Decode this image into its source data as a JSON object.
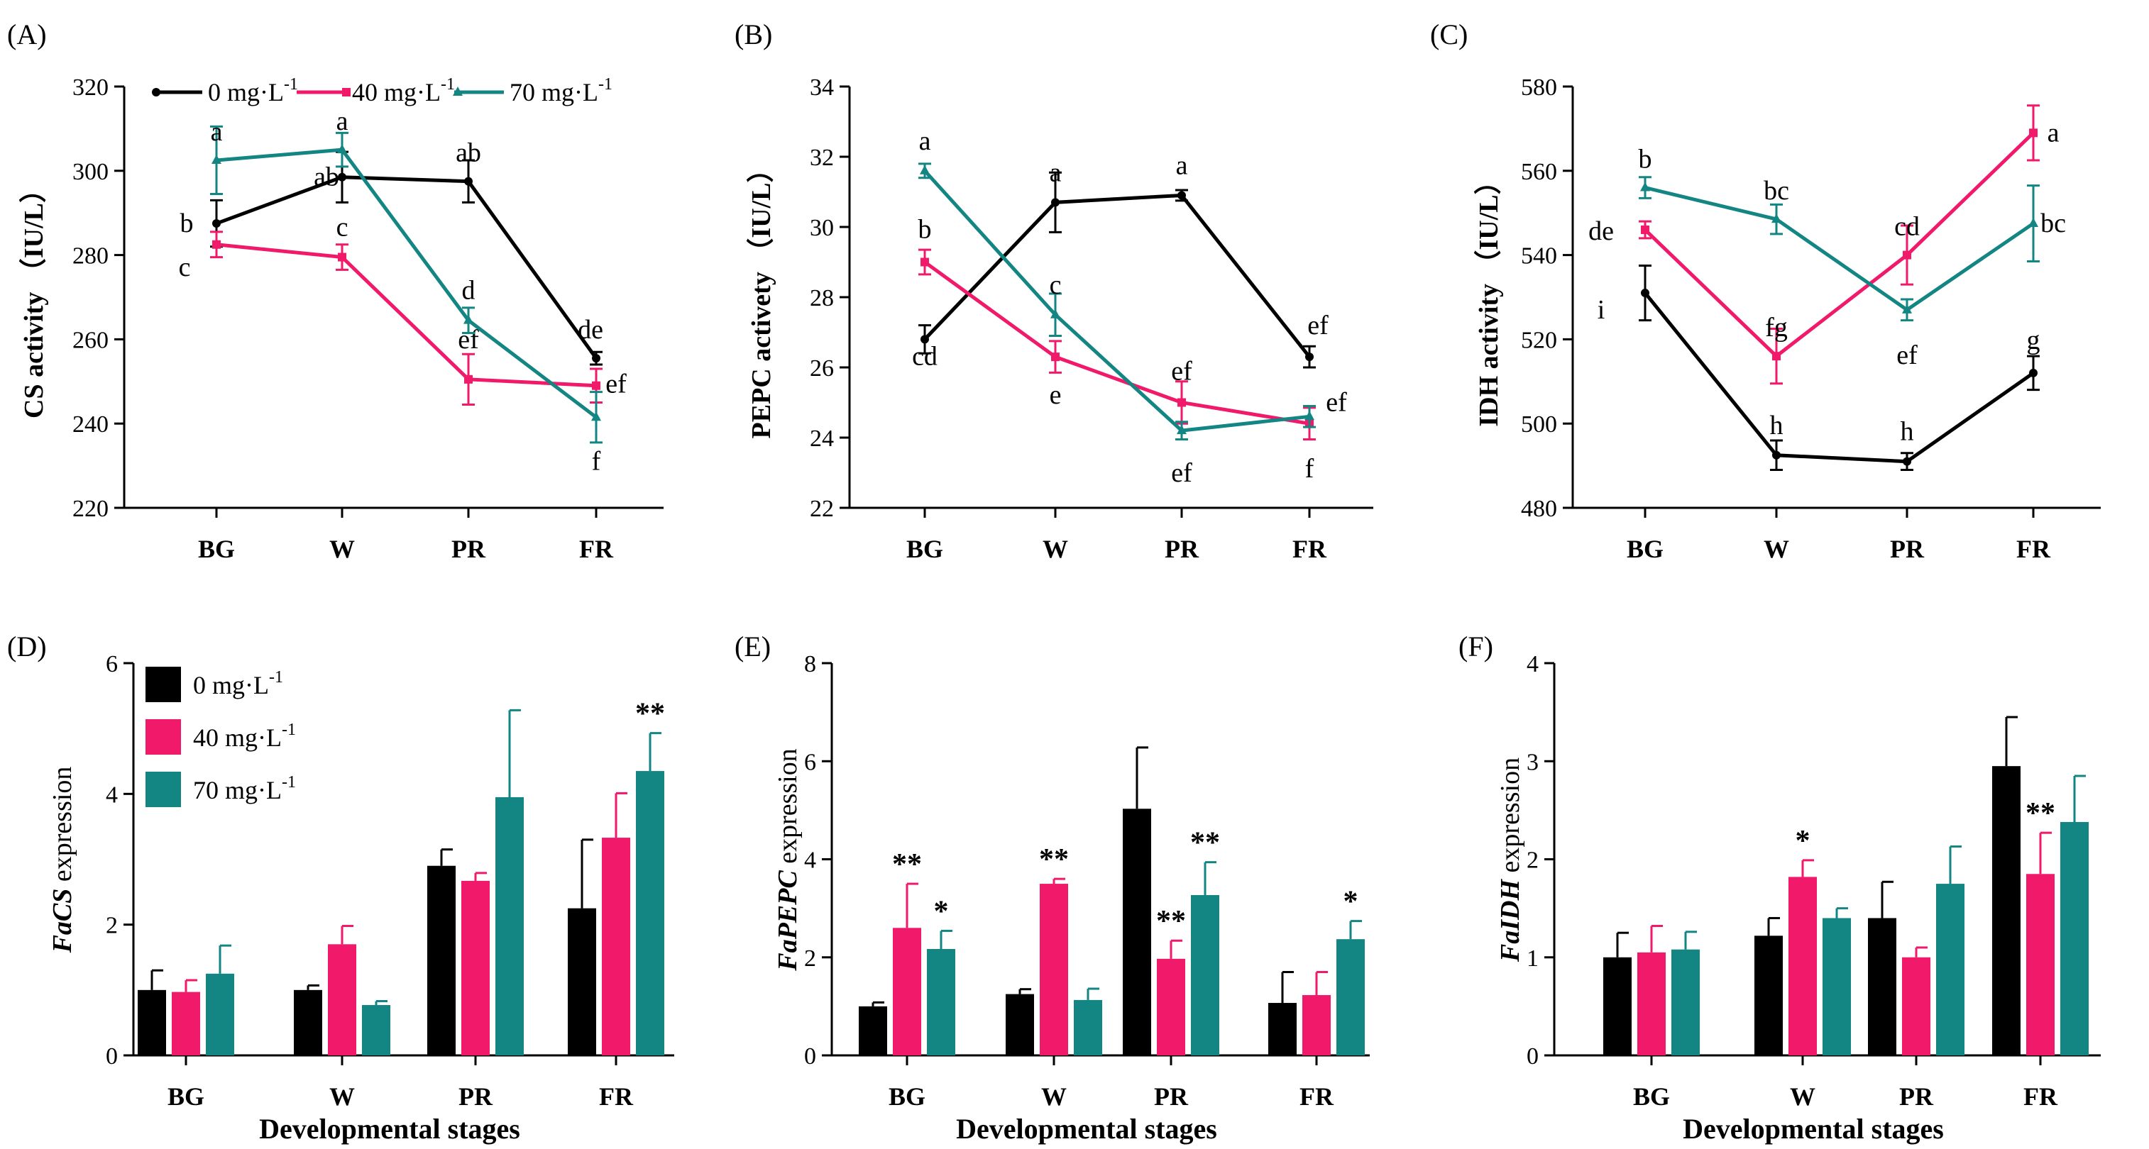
{
  "colors": {
    "c0": "#000000",
    "c40": "#f0196a",
    "c70": "#138684"
  },
  "legend": {
    "entries": [
      {
        "label": "0 mg·L",
        "sup": "-1",
        "color": "#000000"
      },
      {
        "label": "40 mg·L",
        "sup": "-1",
        "color": "#f0196a"
      },
      {
        "label": "70 mg·L",
        "sup": "-1",
        "color": "#138684"
      }
    ]
  },
  "chart_data": [
    {
      "panel": "(A)",
      "type": "line",
      "ylabel": "CS activity （IU/L）",
      "xlabel": "",
      "categories": [
        "BG",
        "W",
        "PR",
        "FR"
      ],
      "ylim": [
        220,
        320
      ],
      "yticks": [
        220,
        240,
        260,
        280,
        300,
        320
      ],
      "series": [
        {
          "name": "0 mg·L-1",
          "values": [
            287.5,
            298.5,
            297.5,
            255.5
          ],
          "errors": [
            5.5,
            6,
            5,
            1.5
          ],
          "labels": [
            "b",
            "ab",
            "ab",
            "de"
          ]
        },
        {
          "name": "40 mg·L-1",
          "values": [
            282.5,
            279.5,
            250.5,
            249.0
          ],
          "errors": [
            3,
            3,
            6,
            4
          ],
          "labels": [
            "c",
            "c",
            "ef",
            "ef"
          ]
        },
        {
          "name": "70 mg·L-1",
          "values": [
            302.5,
            305.0,
            264.5,
            241.5
          ],
          "errors": [
            8,
            4,
            3,
            6
          ],
          "labels": [
            "a",
            "a",
            "d",
            "f"
          ]
        }
      ]
    },
    {
      "panel": "(B)",
      "type": "line",
      "ylabel": "PEPC activety （IU/L）",
      "xlabel": "",
      "categories": [
        "BG",
        "W",
        "PR",
        "FR"
      ],
      "ylim": [
        22,
        34
      ],
      "yticks": [
        22,
        24,
        26,
        28,
        30,
        32,
        34
      ],
      "series": [
        {
          "name": "0 mg·L-1",
          "values": [
            26.8,
            30.7,
            30.9,
            26.3
          ],
          "errors": [
            0.4,
            0.85,
            0.15,
            0.3
          ],
          "labels": [
            "cd",
            "a",
            "a",
            "ef"
          ]
        },
        {
          "name": "40 mg·L-1",
          "values": [
            29.0,
            26.3,
            25.0,
            24.4
          ],
          "errors": [
            0.35,
            0.45,
            0.6,
            0.45
          ],
          "labels": [
            "b",
            "e",
            "ef",
            "f"
          ]
        },
        {
          "name": "70 mg·L-1",
          "values": [
            31.6,
            27.5,
            24.2,
            24.6
          ],
          "errors": [
            0.2,
            0.6,
            0.25,
            0.3
          ],
          "labels": [
            "a",
            "c",
            "ef",
            "ef"
          ]
        }
      ]
    },
    {
      "panel": "(C)",
      "type": "line",
      "ylabel": "IDH activity （IU/L）",
      "xlabel": "",
      "categories": [
        "BG",
        "W",
        "PR",
        "FR"
      ],
      "ylim": [
        480,
        580
      ],
      "yticks": [
        480,
        500,
        520,
        540,
        560,
        580
      ],
      "series": [
        {
          "name": "0 mg·L-1",
          "values": [
            531,
            492.5,
            491,
            512
          ],
          "errors": [
            6.5,
            3.5,
            2,
            4
          ],
          "labels": [
            "i",
            "h",
            "h",
            "g"
          ]
        },
        {
          "name": "40 mg·L-1",
          "values": [
            546,
            516,
            540,
            569
          ],
          "errors": [
            2,
            6.5,
            7,
            6.5
          ],
          "labels": [
            "de",
            "fg",
            "cd",
            "a"
          ]
        },
        {
          "name": "70 mg·L-1",
          "values": [
            556,
            548.5,
            527,
            547.5
          ],
          "errors": [
            2.5,
            3.5,
            2.5,
            9
          ],
          "labels": [
            "b",
            "bc",
            "ef",
            "bc"
          ]
        }
      ]
    },
    {
      "panel": "(D)",
      "type": "bar",
      "ylabel_italic": "FaCS",
      "ylabel_rest": " expression",
      "xlabel": "Developmental stages",
      "categories": [
        "BG",
        "W",
        "PR",
        "FR"
      ],
      "ylim": [
        0,
        6
      ],
      "yticks": [
        0,
        2,
        4,
        6
      ],
      "series": [
        {
          "name": "0 mg·L-1",
          "values": [
            1.0,
            1.0,
            2.9,
            2.25
          ],
          "errors": [
            0.3,
            0.07,
            0.25,
            1.05
          ],
          "sig": [
            "",
            "",
            "",
            ""
          ]
        },
        {
          "name": "40 mg·L-1",
          "values": [
            0.97,
            1.7,
            2.67,
            3.33
          ],
          "errors": [
            0.18,
            0.28,
            0.12,
            0.68
          ],
          "sig": [
            "",
            "",
            "",
            ""
          ]
        },
        {
          "name": "70 mg·L-1",
          "values": [
            1.25,
            0.77,
            3.95,
            4.35
          ],
          "errors": [
            0.43,
            0.06,
            1.33,
            0.58
          ],
          "sig": [
            "",
            "",
            "",
            "**"
          ]
        }
      ]
    },
    {
      "panel": "(E)",
      "type": "bar",
      "ylabel_italic": "FaPEPC",
      "ylabel_rest": " expression",
      "xlabel": "Developmental stages",
      "categories": [
        "BG",
        "W",
        "PR",
        "FR"
      ],
      "ylim": [
        0,
        8
      ],
      "yticks": [
        0,
        2,
        4,
        6,
        8
      ],
      "series": [
        {
          "name": "0 mg·L-1",
          "values": [
            1.0,
            1.25,
            5.03,
            1.07
          ],
          "errors": [
            0.08,
            0.1,
            1.25,
            0.63
          ],
          "sig": [
            "",
            "",
            "",
            ""
          ]
        },
        {
          "name": "40 mg·L-1",
          "values": [
            2.6,
            3.5,
            1.97,
            1.23
          ],
          "errors": [
            0.9,
            0.1,
            0.37,
            0.47
          ],
          "sig": [
            "**",
            "**",
            "**",
            ""
          ]
        },
        {
          "name": "70 mg·L-1",
          "values": [
            2.17,
            1.13,
            3.27,
            2.37
          ],
          "errors": [
            0.37,
            0.23,
            0.67,
            0.37
          ],
          "sig": [
            "*",
            "",
            "**",
            "*"
          ]
        }
      ]
    },
    {
      "panel": "(F)",
      "type": "bar",
      "ylabel_italic": "FaIDH",
      "ylabel_rest": " expression",
      "xlabel": "Developmental stages",
      "categories": [
        "BG",
        "W",
        "PR",
        "FR"
      ],
      "ylim": [
        0,
        4
      ],
      "yticks": [
        0,
        1,
        2,
        3,
        4
      ],
      "series": [
        {
          "name": "0 mg·L-1",
          "values": [
            1.0,
            1.22,
            1.4,
            2.95
          ],
          "errors": [
            0.25,
            0.18,
            0.37,
            0.5
          ],
          "sig": [
            "",
            "",
            "",
            ""
          ]
        },
        {
          "name": "40 mg·L-1",
          "values": [
            1.05,
            1.82,
            1.0,
            1.85
          ],
          "errors": [
            0.27,
            0.17,
            0.1,
            0.42
          ],
          "sig": [
            "",
            "*",
            "",
            "**"
          ]
        },
        {
          "name": "70 mg·L-1",
          "values": [
            1.08,
            1.4,
            1.75,
            2.38
          ],
          "errors": [
            0.18,
            0.1,
            0.38,
            0.47
          ],
          "sig": [
            "",
            "",
            "",
            ""
          ]
        }
      ]
    }
  ]
}
